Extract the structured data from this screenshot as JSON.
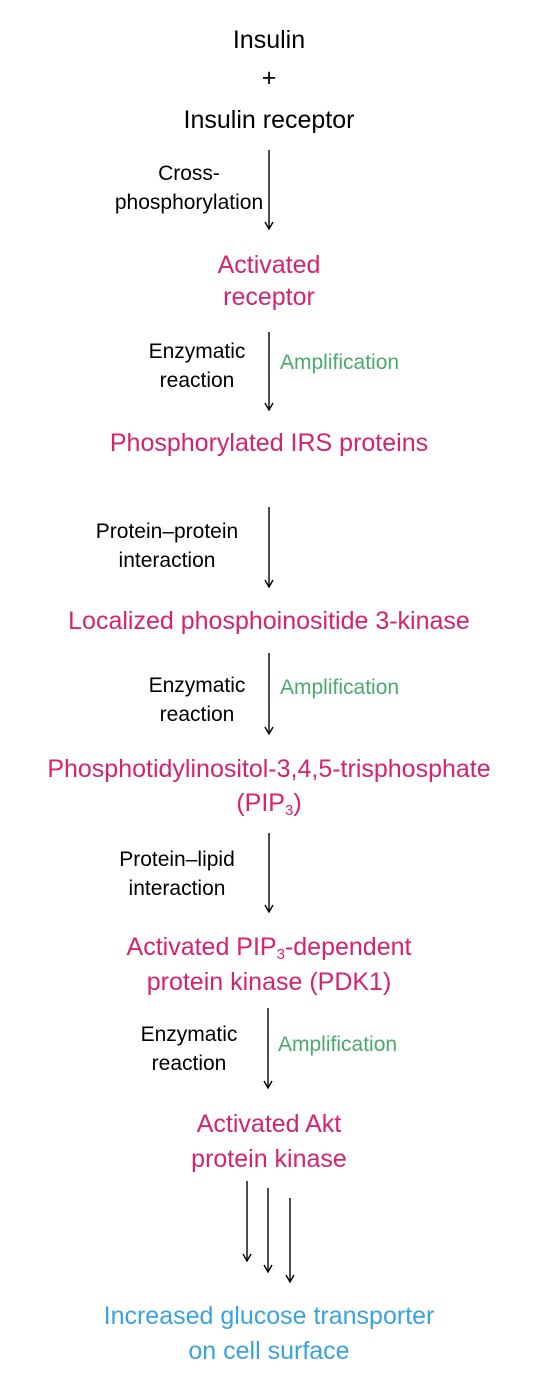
{
  "nodes": {
    "insulin": "Insulin",
    "plus": "+",
    "insulin_receptor": "Insulin receptor",
    "activated_receptor_l1": "Activated",
    "activated_receptor_l2": "receptor",
    "irs": "Phosphorylated IRS proteins",
    "pi3k": "Localized phosphoinositide 3-kinase",
    "pip3_l1": "Phosphotidylinositol-3,4,5-trisphosphate",
    "pip3_l2_pre": "(PIP",
    "pip3_l2_sub": "3",
    "pip3_l2_post": ")",
    "pdk1_l1_pre": "Activated PIP",
    "pdk1_l1_sub": "3",
    "pdk1_l1_post": "-dependent",
    "pdk1_l2": "protein kinase (PDK1)",
    "akt_l1": "Activated Akt",
    "akt_l2": "protein kinase",
    "glut_l1": "Increased glucose transporter",
    "glut_l2": "on cell surface"
  },
  "steps": {
    "s1_l1": "Cross-",
    "s1_l2": "phosphorylation",
    "s2_l1": "Enzymatic",
    "s2_l2": "reaction",
    "s3_l1": "Protein–protein",
    "s3_l2": "interaction",
    "s4_l1": "Enzymatic",
    "s4_l2": "reaction",
    "s5_l1": "Protein–lipid",
    "s5_l2": "interaction",
    "s6_l1": "Enzymatic",
    "s6_l2": "reaction"
  },
  "amplification_label": "Amplification",
  "colors": {
    "product": "#d6226f",
    "amplification": "#4aa96c",
    "outcome": "#3aa2dd",
    "text": "#000000"
  }
}
